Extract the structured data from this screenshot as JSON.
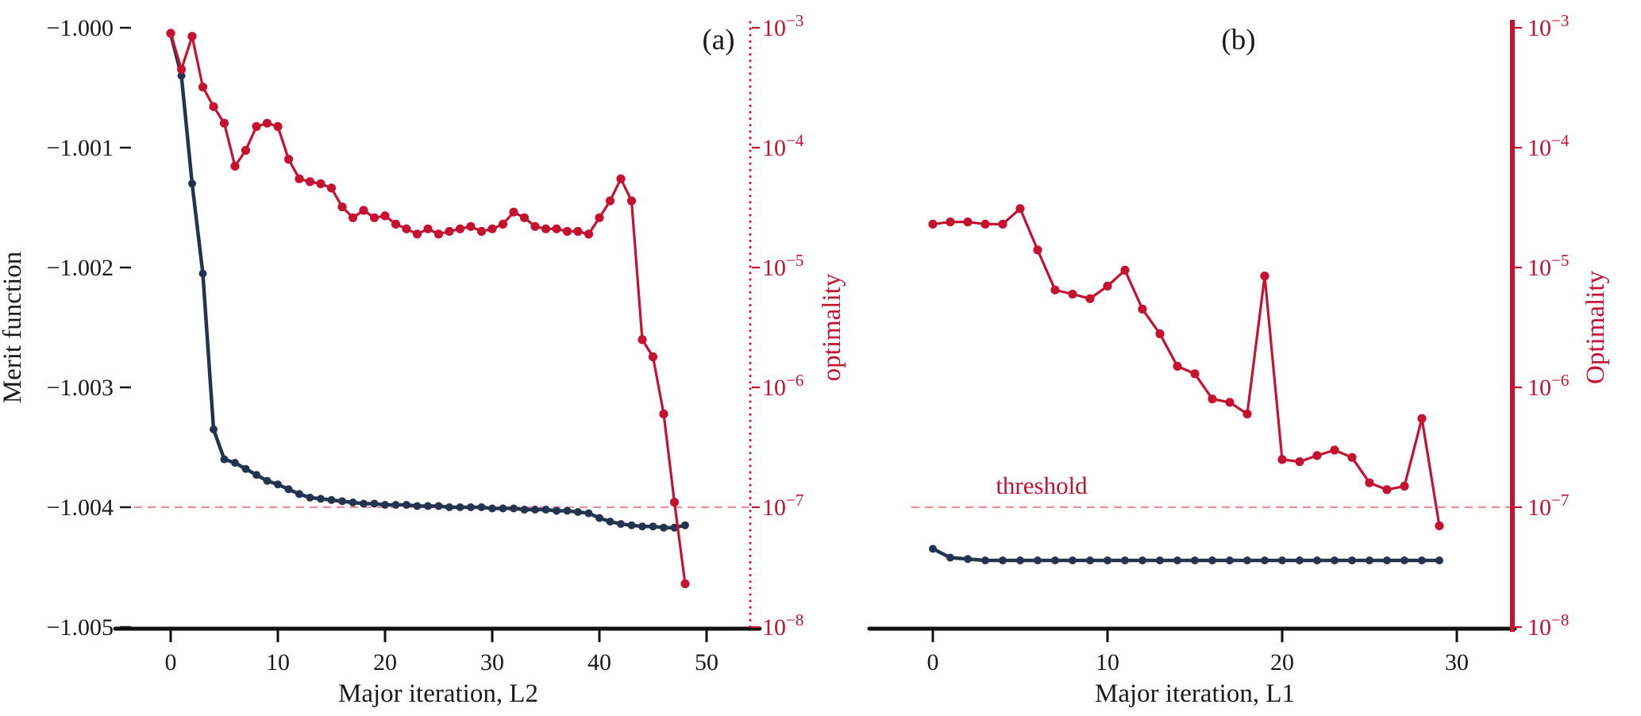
{
  "style": {
    "background": "#ffffff",
    "merit_color": "#233450",
    "optimality_color": "#c41230",
    "threshold_color": "#ef8d9d",
    "axis_text_color": "#1a1a1a"
  },
  "chart_data": [
    {
      "id": "a",
      "type": "line",
      "panel_label": "(a)",
      "xlabel": "Major iteration, L2",
      "x_ticks": [
        0,
        10,
        20,
        30,
        40,
        50
      ],
      "xlim": [
        0,
        50
      ],
      "left_axis": {
        "label": "Merit function",
        "ticks": [
          -1.0,
          -1.001,
          -1.002,
          -1.003,
          -1.004,
          -1.005
        ],
        "lim": [
          -1.005,
          -1.0
        ]
      },
      "right_axis": {
        "label": "optimality",
        "scale": "log",
        "tick_exponents": [
          -3,
          -4,
          -5,
          -6,
          -7,
          -8
        ],
        "lim_exponents": [
          -8,
          -3
        ],
        "spine_style": "dotted"
      },
      "threshold": {
        "value": 1e-07,
        "label": ""
      },
      "series": [
        {
          "name": "merit-function",
          "axis": "left",
          "x": [
            0,
            1,
            2,
            3,
            4,
            5,
            6,
            7,
            8,
            9,
            10,
            11,
            12,
            13,
            14,
            15,
            16,
            17,
            18,
            19,
            20,
            21,
            22,
            23,
            24,
            25,
            26,
            27,
            28,
            29,
            30,
            31,
            32,
            33,
            34,
            35,
            36,
            37,
            38,
            39,
            40,
            41,
            42,
            43,
            44,
            45,
            46,
            47,
            48
          ],
          "y": [
            -1.00005,
            -1.0004,
            -1.0013,
            -1.00205,
            -1.00335,
            -1.0036,
            -1.00363,
            -1.00368,
            -1.00373,
            -1.00378,
            -1.00381,
            -1.00385,
            -1.00389,
            -1.00392,
            -1.00393,
            -1.00394,
            -1.00395,
            -1.00396,
            -1.00397,
            -1.00397,
            -1.00398,
            -1.00398,
            -1.00398,
            -1.00399,
            -1.00399,
            -1.00399,
            -1.004,
            -1.004,
            -1.004,
            -1.004,
            -1.00401,
            -1.00401,
            -1.00401,
            -1.00402,
            -1.00402,
            -1.00402,
            -1.00403,
            -1.00403,
            -1.00404,
            -1.00405,
            -1.00409,
            -1.00412,
            -1.00414,
            -1.00415,
            -1.00416,
            -1.00416,
            -1.00417,
            -1.00417,
            -1.00415
          ]
        },
        {
          "name": "optimality",
          "axis": "right",
          "x": [
            0,
            1,
            2,
            3,
            4,
            5,
            6,
            7,
            8,
            9,
            10,
            11,
            12,
            13,
            14,
            15,
            16,
            17,
            18,
            19,
            20,
            21,
            22,
            23,
            24,
            25,
            26,
            27,
            28,
            29,
            30,
            31,
            32,
            33,
            34,
            35,
            36,
            37,
            38,
            39,
            40,
            41,
            42,
            43,
            44,
            45,
            46,
            47,
            48
          ],
          "y": [
            0.0009,
            0.00045,
            0.00085,
            0.00032,
            0.00022,
            0.00016,
            7e-05,
            9.5e-05,
            0.00015,
            0.00016,
            0.00015,
            8e-05,
            5.5e-05,
            5.2e-05,
            5e-05,
            4.6e-05,
            3.2e-05,
            2.6e-05,
            3e-05,
            2.6e-05,
            2.7e-05,
            2.3e-05,
            2.1e-05,
            1.9e-05,
            2.1e-05,
            1.9e-05,
            2e-05,
            2.1e-05,
            2.2e-05,
            2e-05,
            2.1e-05,
            2.3e-05,
            2.9e-05,
            2.6e-05,
            2.2e-05,
            2.1e-05,
            2.1e-05,
            2e-05,
            2e-05,
            1.9e-05,
            2.6e-05,
            3.6e-05,
            5.5e-05,
            3.6e-05,
            2.5e-06,
            1.8e-06,
            6e-07,
            1.1e-07,
            2.3e-08
          ]
        }
      ]
    },
    {
      "id": "b",
      "type": "line",
      "panel_label": "(b)",
      "xlabel": "Major iteration, L1",
      "x_ticks": [
        0,
        10,
        20,
        30
      ],
      "xlim": [
        0,
        30
      ],
      "left_axis": null,
      "right_axis": {
        "label": "Optimality",
        "scale": "log",
        "tick_exponents": [
          -3,
          -4,
          -5,
          -6,
          -7,
          -8
        ],
        "lim_exponents": [
          -8,
          -3
        ],
        "spine_style": "solid"
      },
      "threshold": {
        "value": 1e-07,
        "label": "threshold"
      },
      "series": [
        {
          "name": "merit-function",
          "axis": "right",
          "x": [
            0,
            1,
            2,
            3,
            4,
            5,
            6,
            7,
            8,
            9,
            10,
            11,
            12,
            13,
            14,
            15,
            16,
            17,
            18,
            19,
            20,
            21,
            22,
            23,
            24,
            25,
            26,
            27,
            28,
            29
          ],
          "y": [
            4.5e-08,
            3.8e-08,
            3.7e-08,
            3.6e-08,
            3.6e-08,
            3.6e-08,
            3.6e-08,
            3.6e-08,
            3.6e-08,
            3.6e-08,
            3.6e-08,
            3.6e-08,
            3.6e-08,
            3.6e-08,
            3.6e-08,
            3.6e-08,
            3.6e-08,
            3.6e-08,
            3.6e-08,
            3.6e-08,
            3.6e-08,
            3.6e-08,
            3.6e-08,
            3.6e-08,
            3.6e-08,
            3.6e-08,
            3.6e-08,
            3.6e-08,
            3.6e-08,
            3.6e-08
          ]
        },
        {
          "name": "optimality",
          "axis": "right",
          "x": [
            0,
            1,
            2,
            3,
            4,
            5,
            6,
            7,
            8,
            9,
            10,
            11,
            12,
            13,
            14,
            15,
            16,
            17,
            18,
            19,
            20,
            21,
            22,
            23,
            24,
            25,
            26,
            27,
            28,
            29
          ],
          "y": [
            2.3e-05,
            2.4e-05,
            2.4e-05,
            2.3e-05,
            2.3e-05,
            3.1e-05,
            1.4e-05,
            6.5e-06,
            6e-06,
            5.5e-06,
            7e-06,
            9.5e-06,
            4.5e-06,
            2.8e-06,
            1.5e-06,
            1.3e-06,
            8e-07,
            7.5e-07,
            6e-07,
            8.5e-06,
            2.5e-07,
            2.4e-07,
            2.7e-07,
            3e-07,
            2.6e-07,
            1.6e-07,
            1.4e-07,
            1.5e-07,
            5.5e-07,
            7e-08
          ]
        }
      ]
    }
  ]
}
